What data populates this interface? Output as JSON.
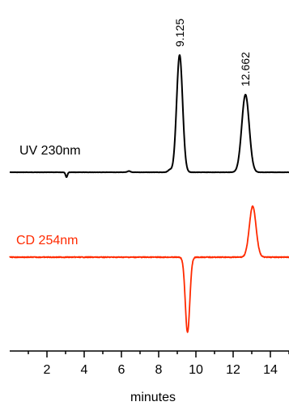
{
  "chart_data": {
    "type": "line",
    "xlabel": "minutes",
    "xlim": [
      0,
      15
    ],
    "xticks": [
      2,
      4,
      6,
      8,
      10,
      12,
      14
    ],
    "grid": false,
    "legend": "none",
    "series": [
      {
        "name": "UV 230nm",
        "color": "#000000",
        "baseline": 0,
        "peaks": [
          {
            "x": 9.125,
            "height": 145,
            "width": 0.16,
            "label": "9.125"
          },
          {
            "x": 12.662,
            "height": 96,
            "width": 0.2,
            "label": "12.662"
          }
        ],
        "artifacts": [
          {
            "x": 3.05,
            "height": -6,
            "width": 0.05
          },
          {
            "x": 6.4,
            "height": 1.5,
            "width": 0.08
          },
          {
            "x": 8.6,
            "height": 3,
            "width": 0.1
          }
        ]
      },
      {
        "name": "CD 254nm",
        "color": "#ff2a00",
        "baseline": 0,
        "peaks": [
          {
            "x": 9.55,
            "height": -93,
            "width": 0.12
          },
          {
            "x": 13.05,
            "height": 63,
            "width": 0.18
          }
        ],
        "artifacts": []
      }
    ]
  }
}
